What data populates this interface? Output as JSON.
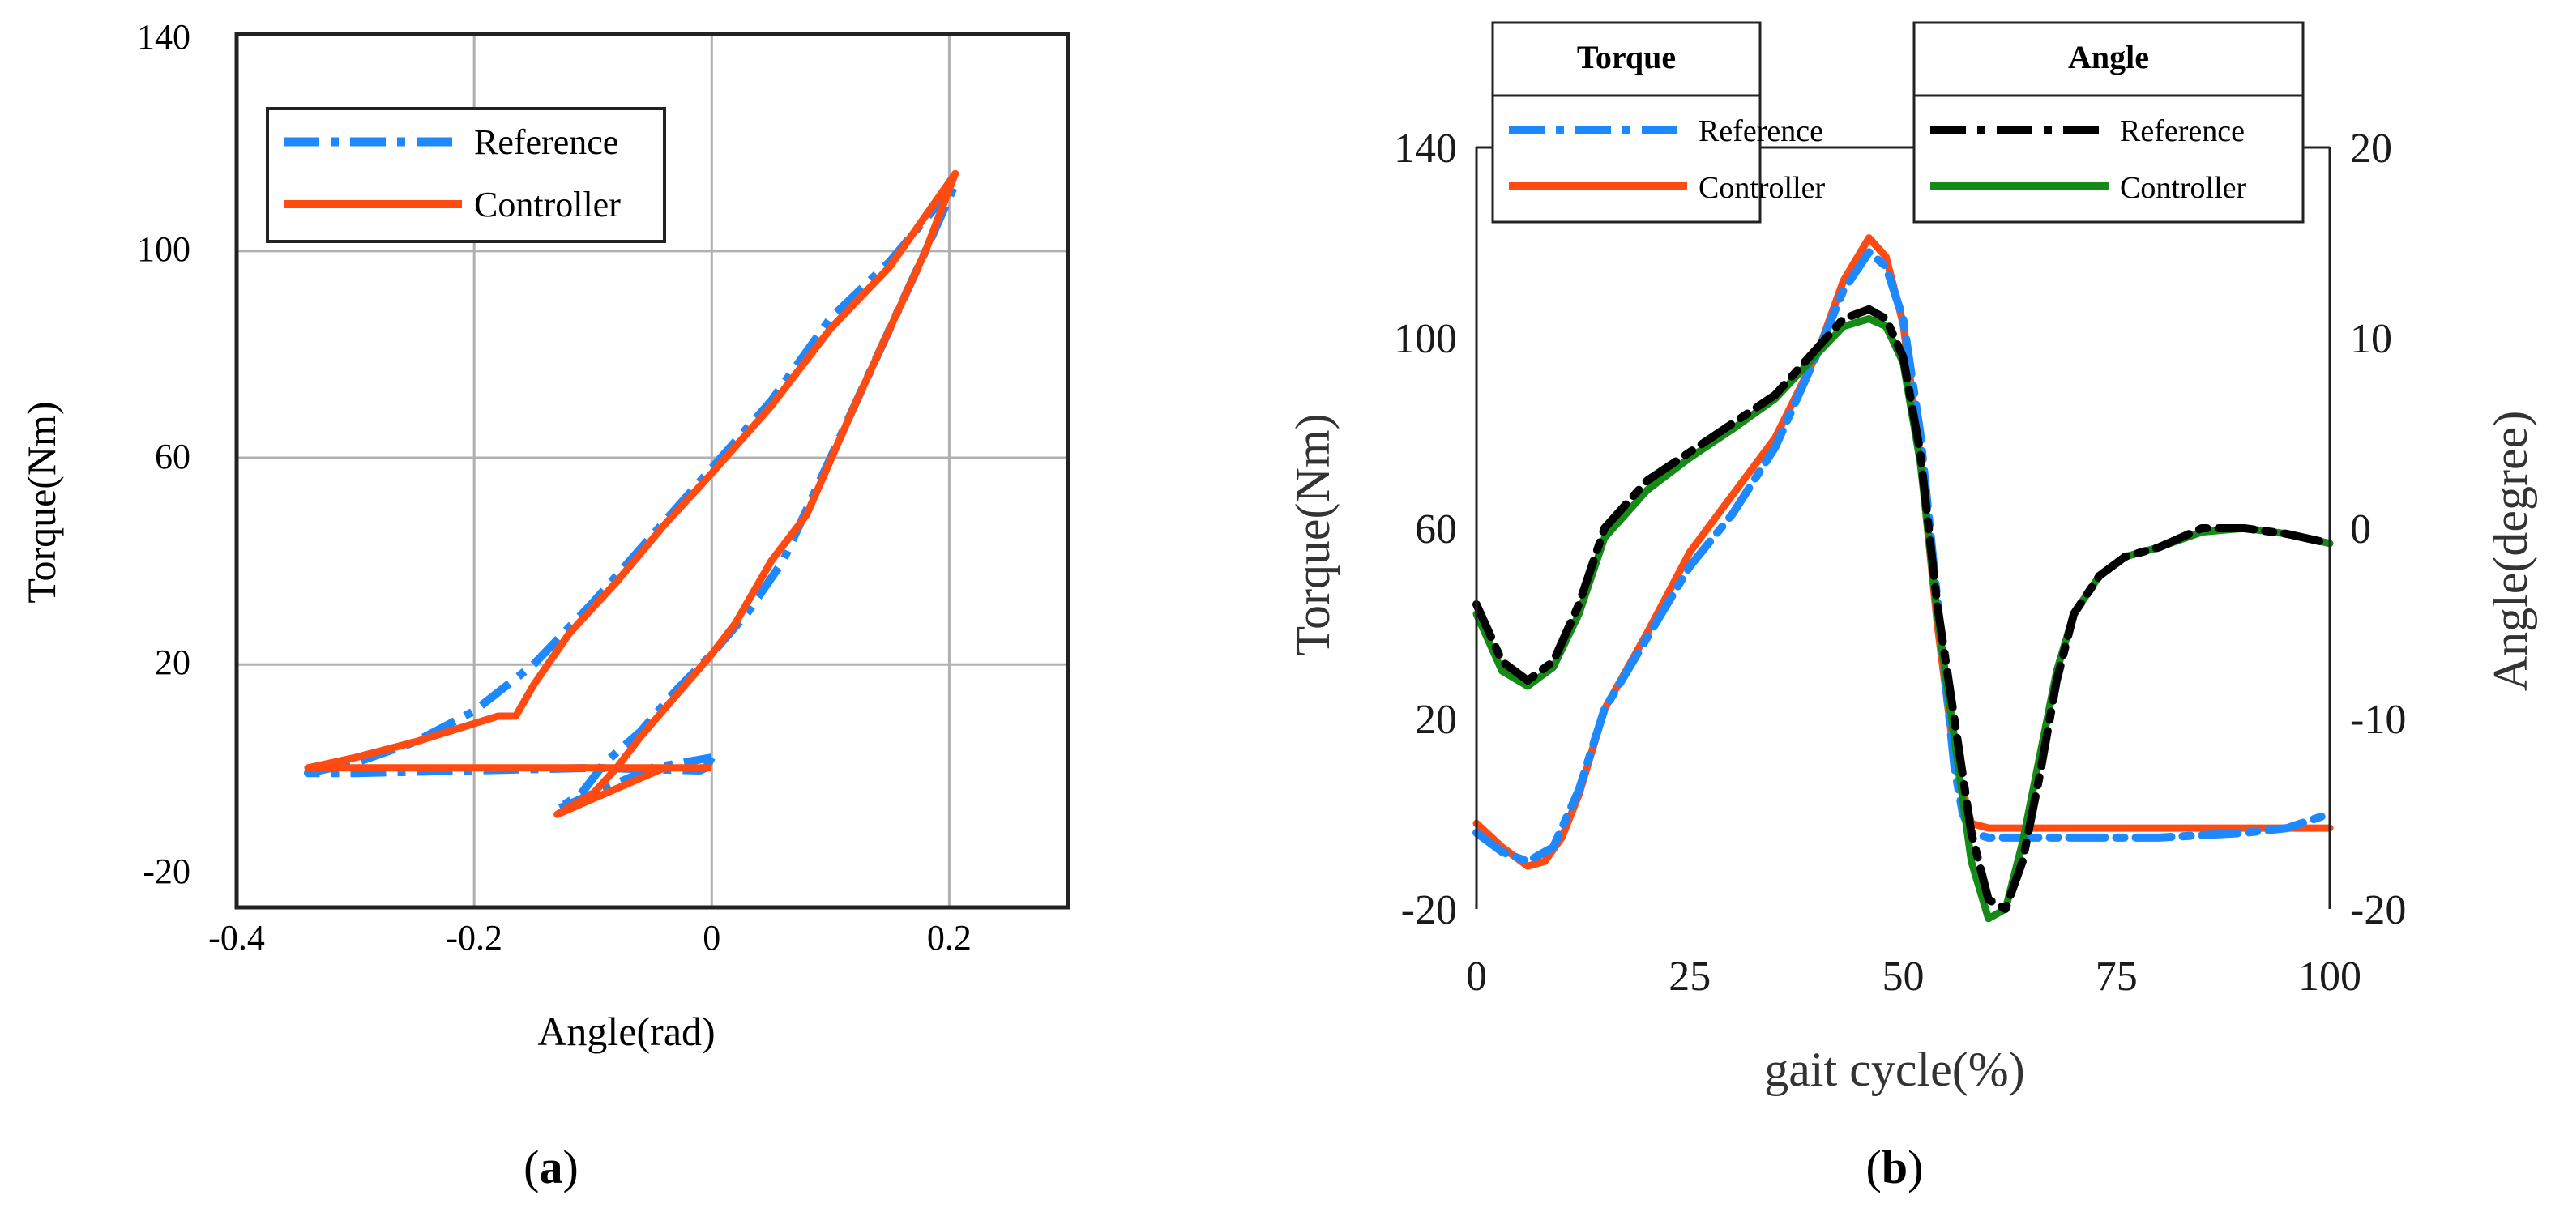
{
  "colors": {
    "torque_reference": "#1e88ff",
    "torque_controller": "#ff4a12",
    "angle_reference": "#000000",
    "angle_controller": "#168a16",
    "grid": "#b0b0b0"
  },
  "chart_data": [
    {
      "id": "a",
      "type": "line",
      "caption_prefix": "(",
      "caption_letter": "a",
      "caption_suffix": ")",
      "xlabel": "Angle(rad)",
      "ylabel": "Torque(Nm)",
      "xlim": [
        -0.4,
        0.3
      ],
      "ylim": [
        -27,
        142
      ],
      "xticks": [
        -0.4,
        -0.2,
        0,
        0.2
      ],
      "xtick_labels": [
        "-0.4",
        "-0.2",
        "0",
        "0.2"
      ],
      "yticks": [
        -20,
        20,
        60,
        100,
        140
      ],
      "ytick_labels": [
        "-20",
        "20",
        "60",
        "100",
        "140"
      ],
      "xgrid": [
        -0.2,
        0,
        0.2
      ],
      "ygrid": [
        20,
        60,
        100
      ],
      "legend_position": "top-left",
      "series": [
        {
          "name": "Reference",
          "style": "dashdot",
          "color_key": "torque_reference",
          "points": [
            [
              0,
              2
            ],
            [
              -0.005,
              0
            ],
            [
              -0.01,
              -0.5
            ],
            [
              -0.1,
              0
            ],
            [
              -0.2,
              -0.5
            ],
            [
              -0.3,
              -1
            ],
            [
              -0.34,
              -1
            ],
            [
              -0.3,
              1
            ],
            [
              -0.25,
              5
            ],
            [
              -0.2,
              11
            ],
            [
              -0.15,
              20
            ],
            [
              -0.1,
              32
            ],
            [
              -0.05,
              45
            ],
            [
              0,
              58
            ],
            [
              0.05,
              71
            ],
            [
              0.1,
              87
            ],
            [
              0.15,
              98
            ],
            [
              0.205,
              113
            ],
            [
              0.18,
              100
            ],
            [
              0.15,
              85
            ],
            [
              0.12,
              70
            ],
            [
              0.08,
              50
            ],
            [
              0.06,
              40
            ],
            [
              0.03,
              30
            ],
            [
              0,
              22
            ],
            [
              -0.03,
              15
            ],
            [
              -0.06,
              7
            ],
            [
              -0.09,
              1
            ],
            [
              -0.11,
              -5
            ],
            [
              -0.13,
              -8
            ],
            [
              -0.1,
              -5
            ],
            [
              -0.05,
              0
            ],
            [
              0,
              2
            ]
          ]
        },
        {
          "name": "Controller",
          "style": "solid",
          "color_key": "torque_controller",
          "points": [
            [
              0,
              0
            ],
            [
              -0.1,
              0
            ],
            [
              -0.2,
              0
            ],
            [
              -0.3,
              0
            ],
            [
              -0.34,
              0
            ],
            [
              -0.3,
              2
            ],
            [
              -0.25,
              5
            ],
            [
              -0.18,
              10
            ],
            [
              -0.165,
              10
            ],
            [
              -0.15,
              16
            ],
            [
              -0.12,
              26
            ],
            [
              -0.08,
              36
            ],
            [
              -0.04,
              47
            ],
            [
              0,
              57
            ],
            [
              0.05,
              70
            ],
            [
              0.1,
              85
            ],
            [
              0.15,
              97
            ],
            [
              0.205,
              115
            ],
            [
              0.18,
              100
            ],
            [
              0.15,
              85
            ],
            [
              0.12,
              70
            ],
            [
              0.08,
              49
            ],
            [
              0.05,
              40
            ],
            [
              0.02,
              28
            ],
            [
              0,
              22
            ],
            [
              -0.03,
              14
            ],
            [
              -0.06,
              6
            ],
            [
              -0.08,
              0
            ],
            [
              -0.1,
              -5
            ],
            [
              -0.13,
              -9
            ],
            [
              -0.1,
              -6
            ],
            [
              -0.07,
              -3
            ],
            [
              -0.04,
              0
            ]
          ]
        }
      ]
    },
    {
      "id": "b",
      "type": "line",
      "caption_prefix": "(",
      "caption_letter": "b",
      "caption_suffix": ")",
      "xlabel": "gait cycle(%)",
      "ylabel": "Torque(Nm)",
      "y2label": "Angle(degree)",
      "xlim": [
        0,
        100
      ],
      "ylim": [
        -20,
        140
      ],
      "y2lim": [
        -20,
        20
      ],
      "xticks": [
        0,
        25,
        50,
        75,
        100
      ],
      "xtick_labels": [
        "0",
        "25",
        "50",
        "75",
        "100"
      ],
      "yticks": [
        -20,
        20,
        60,
        100,
        140
      ],
      "ytick_labels": [
        "-20",
        "20",
        "60",
        "100",
        "140"
      ],
      "y2ticks": [
        -20,
        -10,
        0,
        10,
        20
      ],
      "y2tick_labels": [
        "-20",
        "-10",
        "0",
        "10",
        "20"
      ],
      "legend_position": "top",
      "legend_groups": [
        {
          "title": "Torque",
          "entries": [
            {
              "name": "Reference",
              "style": "dashdot",
              "color_key": "torque_reference"
            },
            {
              "name": "Controller",
              "style": "solid",
              "color_key": "torque_controller"
            }
          ]
        },
        {
          "title": "Angle",
          "entries": [
            {
              "name": "Reference",
              "style": "dashdot",
              "color_key": "angle_reference"
            },
            {
              "name": "Controller",
              "style": "solid",
              "color_key": "angle_controller"
            }
          ]
        }
      ],
      "series": [
        {
          "name": "Torque Reference",
          "axis": "left",
          "style": "dashdot",
          "color_key": "torque_reference",
          "x": [
            0,
            3,
            6,
            9,
            12,
            15,
            20,
            25,
            30,
            35,
            40,
            43,
            46,
            48,
            50,
            52,
            54,
            56,
            57,
            58,
            60,
            65,
            70,
            75,
            80,
            85,
            90,
            95,
            100
          ],
          "y": [
            -4,
            -8,
            -10,
            -7,
            5,
            22,
            37,
            52,
            63,
            77,
            97,
            110,
            118,
            115,
            104,
            80,
            45,
            10,
            0,
            -4,
            -5,
            -5,
            -5,
            -5,
            -5,
            -4.5,
            -4,
            -3,
            0
          ]
        },
        {
          "name": "Torque Controller",
          "axis": "left",
          "style": "solid",
          "color_key": "torque_controller",
          "x": [
            0,
            3,
            6,
            8,
            10,
            12,
            15,
            20,
            25,
            30,
            35,
            40,
            43,
            46,
            48,
            50,
            52,
            54,
            56,
            57,
            58,
            60,
            65,
            70,
            75,
            80,
            85,
            90,
            95,
            100
          ],
          "y": [
            -2,
            -7,
            -11,
            -10,
            -5,
            4,
            22,
            38,
            55,
            67,
            79,
            97,
            112,
            121,
            117,
            103,
            75,
            40,
            12,
            5,
            -2,
            -3,
            -3,
            -3,
            -3,
            -3,
            -3,
            -3,
            -3,
            -3
          ]
        },
        {
          "name": "Angle Reference",
          "axis": "right",
          "style": "dashdot",
          "color_key": "angle_reference",
          "x": [
            0,
            3,
            6,
            9,
            12,
            15,
            20,
            25,
            30,
            35,
            40,
            43,
            46,
            48,
            50,
            52,
            54,
            56,
            58,
            60,
            62,
            64,
            66,
            68,
            70,
            73,
            76,
            80,
            85,
            90,
            95,
            100
          ],
          "y": [
            -4,
            -7,
            -8,
            -7,
            -4,
            0,
            2.5,
            4,
            5.5,
            7,
            9.5,
            11,
            11.5,
            11,
            9,
            4,
            -4,
            -10,
            -16,
            -19.5,
            -20,
            -17.5,
            -13,
            -8,
            -4.5,
            -2.5,
            -1.5,
            -1,
            0,
            0,
            -0.3,
            -0.8
          ]
        },
        {
          "name": "Angle Controller",
          "axis": "right",
          "style": "solid",
          "color_key": "angle_controller",
          "x": [
            0,
            3,
            6,
            9,
            12,
            15,
            20,
            25,
            30,
            35,
            40,
            43,
            46,
            48,
            50,
            52,
            54,
            56,
            58,
            60,
            62,
            64,
            66,
            68,
            70,
            73,
            76,
            80,
            85,
            90,
            95,
            100
          ],
          "y": [
            -4.5,
            -7.5,
            -8.3,
            -7.3,
            -4.5,
            -0.5,
            2,
            3.7,
            5.2,
            6.8,
            9.2,
            10.6,
            11,
            10.6,
            8.7,
            3.5,
            -4.5,
            -11,
            -17.5,
            -20.5,
            -20,
            -16.5,
            -12,
            -7.5,
            -4.5,
            -2.5,
            -1.5,
            -1,
            -0.2,
            0,
            -0.3,
            -0.8
          ]
        }
      ]
    }
  ]
}
